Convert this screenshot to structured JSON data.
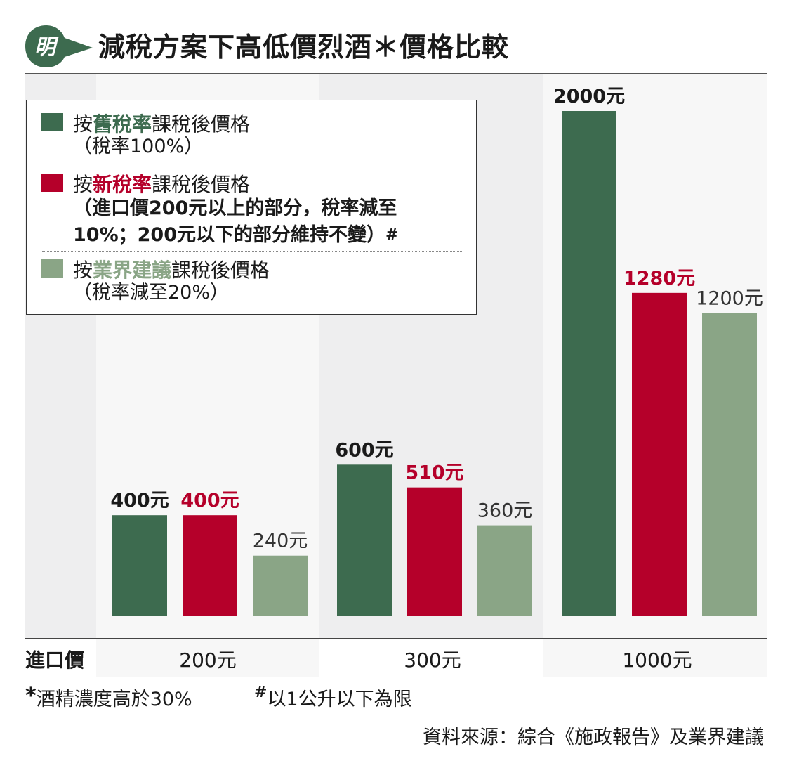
{
  "header": {
    "logo_char": "明",
    "title": "減稅方案下高低價烈酒＊價格比較"
  },
  "legend": {
    "items": [
      {
        "prefix": "按",
        "key": "舊稅率",
        "suffix": "課稅後價格",
        "note_lines": [
          "（稅率100%）"
        ],
        "note_bold": false,
        "color": "#3d6b4f",
        "key_color": "#3d6b4f"
      },
      {
        "prefix": "按",
        "key": "新稅率",
        "suffix": "課稅後價格",
        "note_lines": [
          "（進口價200元以上的部分，稅率減至",
          "10%；200元以下的部分維持不變）"
        ],
        "note_bold": true,
        "note_mark": "#",
        "color": "#b5002a",
        "key_color": "#b5002a"
      },
      {
        "prefix": "按",
        "key": "業界建議",
        "suffix": "課稅後價格",
        "note_lines": [
          "（稅率減至20%）"
        ],
        "note_bold": false,
        "color": "#8aa586",
        "key_color": "#8aa586"
      }
    ]
  },
  "axis": {
    "row_label": "進口價"
  },
  "chart_data": {
    "type": "bar",
    "title": "減稅方案下高低價烈酒＊價格比較",
    "categories": [
      "200元",
      "300元",
      "1000元"
    ],
    "series": [
      {
        "name": "按舊稅率課稅後價格",
        "values": [
          400,
          600,
          2000
        ],
        "labels": [
          "400元",
          "600元",
          "2000元"
        ],
        "color": "#3d6b4f",
        "label_color": "#1a1a1a",
        "label_bold": true
      },
      {
        "name": "按新稅率課稅後價格",
        "values": [
          400,
          510,
          1280
        ],
        "labels": [
          "400元",
          "510元",
          "1280元"
        ],
        "color": "#b5002a",
        "label_color": "#b5002a",
        "label_bold": true
      },
      {
        "name": "按業界建議課稅後價格",
        "values": [
          240,
          360,
          1200
        ],
        "labels": [
          "240元",
          "360元",
          "1200元"
        ],
        "color": "#8aa586",
        "label_color": "#333333",
        "label_bold": false
      }
    ],
    "ylim": [
      0,
      2000
    ],
    "grid": false,
    "legend_position": "top-left"
  },
  "footnotes": {
    "note1_mark": "*",
    "note1_text": "酒精濃度高於30%",
    "note2_mark": "#",
    "note2_text": "以1公升以下為限"
  },
  "source": "資料來源：綜合《施政報告》及業界建議"
}
